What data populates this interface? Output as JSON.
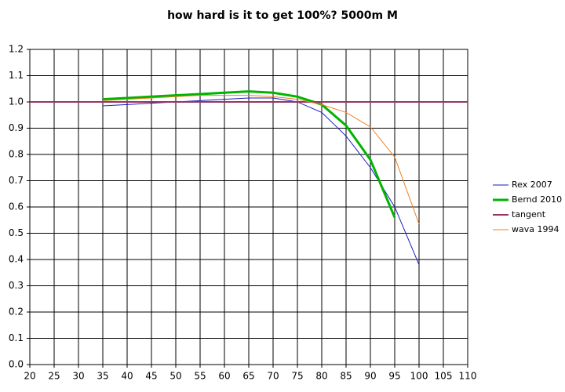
{
  "chart_data": {
    "type": "line",
    "title": "how hard is it to get 100%? 5000m M",
    "xlim": [
      20,
      110
    ],
    "xticks": [
      20,
      25,
      30,
      35,
      40,
      45,
      50,
      55,
      60,
      65,
      70,
      75,
      80,
      85,
      90,
      95,
      100,
      105,
      110
    ],
    "ylim": [
      0,
      1.2
    ],
    "yticks": [
      {
        "value": 0,
        "label": "0.0"
      },
      0.1,
      0.2,
      0.3,
      0.4,
      0.5,
      0.6,
      0.7,
      0.8,
      0.9,
      {
        "value": 1,
        "label": "1.0"
      },
      1.1,
      1.2
    ],
    "grid": true,
    "legend": "right",
    "series": [
      {
        "name": "Rex 2007",
        "color": "#1a1ac0",
        "width": 1,
        "x": [
          35,
          40,
          45,
          50,
          55,
          60,
          65,
          70,
          75,
          80,
          85,
          90,
          95,
          100
        ],
        "values": [
          0.985,
          0.99,
          0.995,
          1.0,
          1.005,
          1.01,
          1.015,
          1.015,
          1.0,
          0.96,
          0.87,
          0.75,
          0.6,
          0.38
        ]
      },
      {
        "name": "Bernd 2010",
        "color": "#00b400",
        "width": 3,
        "x": [
          35,
          40,
          45,
          50,
          55,
          60,
          65,
          70,
          75,
          80,
          85,
          90,
          95
        ],
        "values": [
          1.01,
          1.015,
          1.02,
          1.025,
          1.03,
          1.035,
          1.04,
          1.035,
          1.02,
          0.99,
          0.91,
          0.78,
          0.56
        ]
      },
      {
        "name": "tangent",
        "color": "#993366",
        "width": 2,
        "x": [
          20,
          110
        ],
        "values": [
          1.0,
          1.0
        ]
      },
      {
        "name": "wava 1994",
        "color": "#f08020",
        "width": 1,
        "x": [
          35,
          40,
          45,
          50,
          55,
          60,
          65,
          70,
          75,
          80,
          85,
          90,
          95,
          100
        ],
        "values": [
          1.005,
          1.01,
          1.015,
          1.02,
          1.025,
          1.025,
          1.025,
          1.02,
          1.01,
          0.99,
          0.96,
          0.905,
          0.79,
          0.535
        ]
      }
    ]
  }
}
